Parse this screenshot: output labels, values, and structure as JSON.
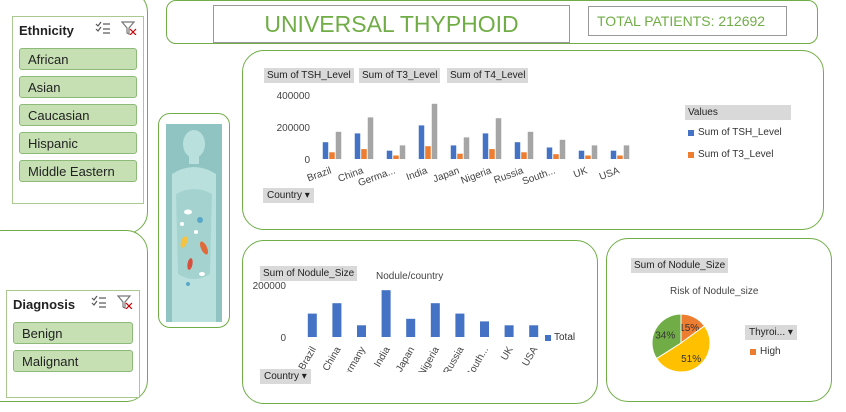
{
  "ethnicity_slicer": {
    "title": "Ethnicity",
    "items": [
      "African",
      "Asian",
      "Caucasian",
      "Hispanic",
      "Middle Eastern"
    ]
  },
  "diagnosis_slicer": {
    "title": "Diagnosis",
    "items": [
      "Benign",
      "Malignant"
    ]
  },
  "header": {
    "title": "UNIVERSAL THYPHOID REPORT",
    "total_patients": "TOTAL PATIENTS: 212692"
  },
  "colors": {
    "accent": "#70ad47",
    "blue": "#4472c4",
    "orange": "#ed7d31",
    "gray": "#a5a5a5",
    "yellow": "#ffc000",
    "green": "#70ad47"
  },
  "chart1": {
    "field_buttons": [
      "Sum of TSH_Level",
      "Sum of T3_Level",
      "Sum of T4_Level"
    ],
    "axis_button": "Country",
    "legend_title": "Values",
    "legend_items": [
      "Sum of TSH_Level",
      "Sum of T3_Level"
    ]
  },
  "chart2": {
    "field_button": "Sum of Nodule_Size",
    "title": "Nodule/country",
    "axis_button": "Country",
    "legend_item": "Total"
  },
  "chart3": {
    "field_button": "Sum of Nodule_Size",
    "title": "Risk of Nodule_size",
    "legend_button": "Thyroi...",
    "legend_item": "High"
  },
  "chart_data": [
    {
      "type": "bar",
      "categories": [
        "Brazil",
        "China",
        "Germa...",
        "India",
        "Japan",
        "Nigeria",
        "Russia",
        "South...",
        "UK",
        "USA"
      ],
      "series": [
        {
          "name": "Sum of TSH_Level",
          "values": [
            105000,
            160000,
            52000,
            210000,
            85000,
            160000,
            105000,
            72000,
            52000,
            52000
          ]
        },
        {
          "name": "Sum of T3_Level",
          "values": [
            42000,
            62000,
            22000,
            80000,
            33000,
            62000,
            42000,
            30000,
            22000,
            22000
          ]
        },
        {
          "name": "Sum of T4_Level",
          "values": [
            170000,
            260000,
            85000,
            345000,
            135000,
            255000,
            170000,
            120000,
            85000,
            85000
          ]
        }
      ],
      "yticks": [
        "400000",
        "200000",
        "0"
      ],
      "ylim": [
        0,
        400000
      ]
    },
    {
      "type": "bar",
      "categories": [
        "Brazil",
        "China",
        "Germany",
        "India",
        "Japan",
        "Nigeria",
        "Russia",
        "South...",
        "UK",
        "USA"
      ],
      "series": [
        {
          "name": "Total",
          "values": [
            90000,
            130000,
            45000,
            180000,
            70000,
            130000,
            90000,
            60000,
            45000,
            45000
          ]
        }
      ],
      "yticks": [
        "200000",
        "0"
      ],
      "ylim": [
        0,
        200000
      ],
      "title": "Nodule/country"
    },
    {
      "type": "pie",
      "title": "Risk of Nodule_size",
      "slices": [
        {
          "label": "15%",
          "value": 15,
          "color": "#ed7d31"
        },
        {
          "label": "51%",
          "value": 51,
          "color": "#ffc000"
        },
        {
          "label": "34%",
          "value": 34,
          "color": "#70ad47"
        }
      ]
    }
  ]
}
